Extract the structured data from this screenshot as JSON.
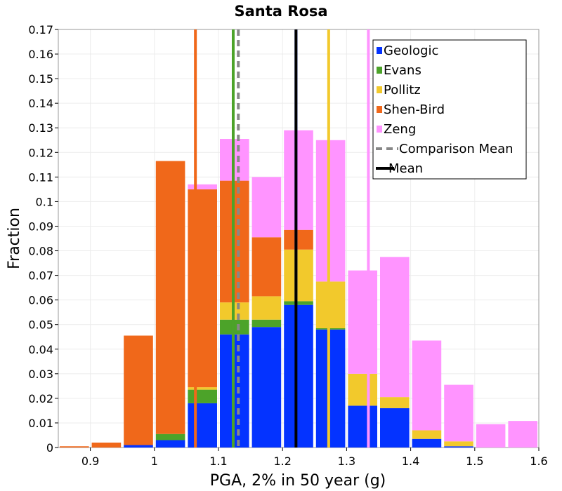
{
  "chart_data": {
    "type": "bar",
    "stacked": true,
    "title": "Santa Rosa",
    "xlabel": "PGA, 2% in 50 year (g)",
    "ylabel": "Fraction",
    "xlim": [
      0.85,
      1.6
    ],
    "ylim": [
      0,
      0.17
    ],
    "bin_width": 0.05,
    "x_ticks": [
      0.9,
      1.0,
      1.1,
      1.2,
      1.3,
      1.4,
      1.5,
      1.6
    ],
    "x_tick_labels": [
      "0.9",
      "1",
      "1.1",
      "1.2",
      "1.3",
      "1.4",
      "1.5",
      "1.6"
    ],
    "y_ticks": [
      0,
      0.01,
      0.02,
      0.03,
      0.04,
      0.05,
      0.06,
      0.07,
      0.08,
      0.09,
      0.1,
      0.11,
      0.12,
      0.13,
      0.14,
      0.15,
      0.16,
      0.17
    ],
    "y_tick_labels": [
      "0",
      "0.01",
      "0.02",
      "0.03",
      "0.04",
      "0.05",
      "0.06",
      "0.07",
      "0.08",
      "0.09",
      "0.1",
      "0.11",
      "0.12",
      "0.13",
      "0.14",
      "0.15",
      "0.16",
      "0.17"
    ],
    "bin_centers": [
      0.875,
      0.925,
      0.975,
      1.025,
      1.075,
      1.125,
      1.175,
      1.225,
      1.275,
      1.325,
      1.375,
      1.425,
      1.475,
      1.525,
      1.575
    ],
    "series": [
      {
        "name": "Geologic",
        "color": "#0433ff",
        "values": [
          0,
          0,
          0.001,
          0.003,
          0.018,
          0.046,
          0.049,
          0.058,
          0.048,
          0.017,
          0.016,
          0.0035,
          0.0005,
          0,
          0
        ]
      },
      {
        "name": "Evans",
        "color": "#4ca329",
        "values": [
          0,
          0,
          0,
          0.0025,
          0.0055,
          0.006,
          0.003,
          0.0015,
          0.0005,
          0,
          0,
          0,
          0,
          0,
          0
        ]
      },
      {
        "name": "Pollitz",
        "color": "#f2c92c",
        "values": [
          0,
          0,
          0,
          0,
          0.001,
          0.007,
          0.0095,
          0.021,
          0.019,
          0.013,
          0.0045,
          0.0035,
          0.002,
          0,
          0
        ]
      },
      {
        "name": "Shen-Bird",
        "color": "#f0681a",
        "values": [
          0.0005,
          0.002,
          0.0445,
          0.111,
          0.0805,
          0.0495,
          0.024,
          0.008,
          0,
          0,
          0,
          0,
          0,
          0,
          0
        ]
      },
      {
        "name": "Zeng",
        "color": "#ff94ff",
        "values": [
          0,
          0,
          0,
          0,
          0.002,
          0.017,
          0.0245,
          0.0405,
          0.0575,
          0.042,
          0.057,
          0.0365,
          0.023,
          0.0095,
          0.0108
        ]
      }
    ],
    "vertical_lines": [
      {
        "name": "Shen-Bird mean",
        "x": 1.064,
        "color": "#f0681a",
        "style": "solid"
      },
      {
        "name": "Evans mean",
        "x": 1.123,
        "color": "#4ca329",
        "style": "solid"
      },
      {
        "name": "Comparison Mean",
        "x": 1.131,
        "color": "#888888",
        "style": "dashed"
      },
      {
        "name": "Geologic mean",
        "x": 1.221,
        "color": "#0433ff",
        "style": "solid"
      },
      {
        "name": "Mean",
        "x": 1.221,
        "color": "#000000",
        "style": "solid"
      },
      {
        "name": "Pollitz mean",
        "x": 1.272,
        "color": "#f2c92c",
        "style": "solid"
      },
      {
        "name": "Zeng mean",
        "x": 1.334,
        "color": "#ff94ff",
        "style": "solid"
      }
    ],
    "legend": {
      "placement": "top-right",
      "entries": [
        {
          "label": "Geologic",
          "color": "#0433ff",
          "kind": "square"
        },
        {
          "label": "Evans",
          "color": "#4ca329",
          "kind": "square"
        },
        {
          "label": "Pollitz",
          "color": "#f2c92c",
          "kind": "square"
        },
        {
          "label": "Shen-Bird",
          "color": "#f0681a",
          "kind": "square"
        },
        {
          "label": "Zeng",
          "color": "#ff94ff",
          "kind": "square"
        },
        {
          "label": "Comparison Mean",
          "color": "#888888",
          "kind": "dashed-line"
        },
        {
          "label": "Mean",
          "color": "#000000",
          "kind": "line"
        }
      ]
    },
    "grid": true
  }
}
